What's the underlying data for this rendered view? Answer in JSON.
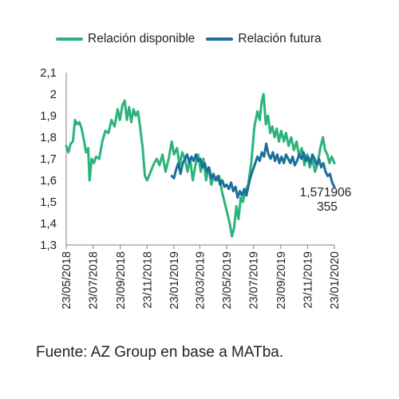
{
  "legend": {
    "series1": "Relación disponible",
    "series2": "Relación futura"
  },
  "source": "Fuente: AZ Group en base a MATba.",
  "chart_data": {
    "type": "line",
    "title": "",
    "xlabel": "",
    "ylabel": "",
    "ylim": [
      1.3,
      2.1
    ],
    "y_ticks": [
      "1,3",
      "1,4",
      "1,5",
      "1,6",
      "1,7",
      "1,8",
      "1,9",
      "2",
      "2,1"
    ],
    "y_tick_values": [
      1.3,
      1.4,
      1.5,
      1.6,
      1.7,
      1.8,
      1.9,
      2.0,
      2.1
    ],
    "x_range": [
      "2018-05-23",
      "2020-01-23"
    ],
    "x_ticks": [
      "23/05/2018",
      "23/07/2018",
      "23/09/2018",
      "23/11/2018",
      "23/01/2019",
      "23/03/2019",
      "23/05/2019",
      "23/07/2019",
      "23/09/2019",
      "23/11/2019",
      "23/01/2020"
    ],
    "x_tick_dates": [
      "2018-05-23",
      "2018-07-23",
      "2018-09-23",
      "2018-11-23",
      "2019-01-23",
      "2019-03-23",
      "2019-05-23",
      "2019-07-23",
      "2019-09-23",
      "2019-11-23",
      "2020-01-23"
    ],
    "grid": false,
    "legend_position": "top",
    "annotation": {
      "line1": "1,571906",
      "line2": "355",
      "value": 1.571906355,
      "date": "2020-01-23"
    },
    "series": [
      {
        "name": "Relación disponible",
        "color": "#2bb37a",
        "points": [
          [
            "2018-05-23",
            1.76
          ],
          [
            "2018-05-28",
            1.73
          ],
          [
            "2018-06-02",
            1.77
          ],
          [
            "2018-06-07",
            1.78
          ],
          [
            "2018-06-12",
            1.88
          ],
          [
            "2018-06-17",
            1.86
          ],
          [
            "2018-06-22",
            1.87
          ],
          [
            "2018-06-27",
            1.84
          ],
          [
            "2018-07-02",
            1.79
          ],
          [
            "2018-07-07",
            1.73
          ],
          [
            "2018-07-12",
            1.75
          ],
          [
            "2018-07-15",
            1.6
          ],
          [
            "2018-07-20",
            1.7
          ],
          [
            "2018-07-25",
            1.68
          ],
          [
            "2018-07-30",
            1.71
          ],
          [
            "2018-08-06",
            1.7
          ],
          [
            "2018-08-13",
            1.78
          ],
          [
            "2018-08-20",
            1.83
          ],
          [
            "2018-08-27",
            1.82
          ],
          [
            "2018-09-03",
            1.88
          ],
          [
            "2018-09-10",
            1.85
          ],
          [
            "2018-09-17",
            1.93
          ],
          [
            "2018-09-22",
            1.88
          ],
          [
            "2018-09-28",
            1.95
          ],
          [
            "2018-10-03",
            1.97
          ],
          [
            "2018-10-08",
            1.88
          ],
          [
            "2018-10-13",
            1.94
          ],
          [
            "2018-10-18",
            1.87
          ],
          [
            "2018-10-23",
            1.93
          ],
          [
            "2018-10-28",
            1.9
          ],
          [
            "2018-11-02",
            1.92
          ],
          [
            "2018-11-07",
            1.85
          ],
          [
            "2018-11-13",
            1.75
          ],
          [
            "2018-11-18",
            1.62
          ],
          [
            "2018-11-23",
            1.6
          ],
          [
            "2018-12-01",
            1.64
          ],
          [
            "2018-12-09",
            1.68
          ],
          [
            "2018-12-15",
            1.7
          ],
          [
            "2018-12-21",
            1.67
          ],
          [
            "2018-12-28",
            1.72
          ],
          [
            "2019-01-04",
            1.64
          ],
          [
            "2019-01-11",
            1.7
          ],
          [
            "2019-01-18",
            1.78
          ],
          [
            "2019-01-23",
            1.72
          ],
          [
            "2019-01-30",
            1.75
          ],
          [
            "2019-02-05",
            1.67
          ],
          [
            "2019-02-11",
            1.73
          ],
          [
            "2019-02-17",
            1.7
          ],
          [
            "2019-02-23",
            1.64
          ],
          [
            "2019-03-01",
            1.7
          ],
          [
            "2019-03-07",
            1.6
          ],
          [
            "2019-03-13",
            1.67
          ],
          [
            "2019-03-19",
            1.72
          ],
          [
            "2019-03-25",
            1.64
          ],
          [
            "2019-03-31",
            1.7
          ],
          [
            "2019-04-06",
            1.6
          ],
          [
            "2019-04-12",
            1.66
          ],
          [
            "2019-04-18",
            1.58
          ],
          [
            "2019-04-24",
            1.62
          ],
          [
            "2019-04-30",
            1.6
          ],
          [
            "2019-05-06",
            1.62
          ],
          [
            "2019-05-12",
            1.55
          ],
          [
            "2019-05-18",
            1.5
          ],
          [
            "2019-05-24",
            1.45
          ],
          [
            "2019-05-30",
            1.4
          ],
          [
            "2019-06-04",
            1.34
          ],
          [
            "2019-06-09",
            1.38
          ],
          [
            "2019-06-14",
            1.48
          ],
          [
            "2019-06-19",
            1.42
          ],
          [
            "2019-06-24",
            1.52
          ],
          [
            "2019-06-29",
            1.5
          ],
          [
            "2019-07-04",
            1.55
          ],
          [
            "2019-07-11",
            1.58
          ],
          [
            "2019-07-18",
            1.68
          ],
          [
            "2019-07-25",
            1.85
          ],
          [
            "2019-08-01",
            1.92
          ],
          [
            "2019-08-06",
            1.88
          ],
          [
            "2019-08-11",
            1.97
          ],
          [
            "2019-08-15",
            2.0
          ],
          [
            "2019-08-20",
            1.86
          ],
          [
            "2019-08-25",
            1.9
          ],
          [
            "2019-08-30",
            1.82
          ],
          [
            "2019-09-04",
            1.85
          ],
          [
            "2019-09-09",
            1.8
          ],
          [
            "2019-09-14",
            1.84
          ],
          [
            "2019-09-19",
            1.78
          ],
          [
            "2019-09-24",
            1.83
          ],
          [
            "2019-09-30",
            1.78
          ],
          [
            "2019-10-05",
            1.82
          ],
          [
            "2019-10-11",
            1.76
          ],
          [
            "2019-10-17",
            1.8
          ],
          [
            "2019-10-23",
            1.74
          ],
          [
            "2019-10-29",
            1.78
          ],
          [
            "2019-11-04",
            1.71
          ],
          [
            "2019-11-10",
            1.75
          ],
          [
            "2019-11-16",
            1.67
          ],
          [
            "2019-11-22",
            1.72
          ],
          [
            "2019-11-28",
            1.66
          ],
          [
            "2019-12-04",
            1.7
          ],
          [
            "2019-12-10",
            1.64
          ],
          [
            "2019-12-16",
            1.68
          ],
          [
            "2019-12-22",
            1.75
          ],
          [
            "2019-12-28",
            1.8
          ],
          [
            "2020-01-02",
            1.74
          ],
          [
            "2020-01-07",
            1.72
          ],
          [
            "2020-01-12",
            1.68
          ],
          [
            "2020-01-17",
            1.71
          ],
          [
            "2020-01-23",
            1.68
          ]
        ]
      },
      {
        "name": "Relación futura",
        "color": "#1b6f9a",
        "points": [
          [
            "2019-01-18",
            1.62
          ],
          [
            "2019-01-23",
            1.61
          ],
          [
            "2019-01-28",
            1.65
          ],
          [
            "2019-02-02",
            1.68
          ],
          [
            "2019-02-07",
            1.63
          ],
          [
            "2019-02-12",
            1.68
          ],
          [
            "2019-02-17",
            1.7
          ],
          [
            "2019-02-22",
            1.72
          ],
          [
            "2019-02-27",
            1.68
          ],
          [
            "2019-03-04",
            1.71
          ],
          [
            "2019-03-09",
            1.69
          ],
          [
            "2019-03-14",
            1.72
          ],
          [
            "2019-03-19",
            1.69
          ],
          [
            "2019-03-24",
            1.7
          ],
          [
            "2019-03-29",
            1.66
          ],
          [
            "2019-04-03",
            1.68
          ],
          [
            "2019-04-08",
            1.64
          ],
          [
            "2019-04-13",
            1.66
          ],
          [
            "2019-04-18",
            1.61
          ],
          [
            "2019-04-23",
            1.63
          ],
          [
            "2019-04-28",
            1.6
          ],
          [
            "2019-05-03",
            1.62
          ],
          [
            "2019-05-08",
            1.58
          ],
          [
            "2019-05-13",
            1.6
          ],
          [
            "2019-05-18",
            1.57
          ],
          [
            "2019-05-23",
            1.58
          ],
          [
            "2019-05-28",
            1.56
          ],
          [
            "2019-06-02",
            1.59
          ],
          [
            "2019-06-07",
            1.55
          ],
          [
            "2019-06-12",
            1.57
          ],
          [
            "2019-06-17",
            1.52
          ],
          [
            "2019-06-22",
            1.55
          ],
          [
            "2019-06-27",
            1.53
          ],
          [
            "2019-07-02",
            1.56
          ],
          [
            "2019-07-07",
            1.53
          ],
          [
            "2019-07-12",
            1.58
          ],
          [
            "2019-07-17",
            1.62
          ],
          [
            "2019-07-22",
            1.65
          ],
          [
            "2019-07-27",
            1.68
          ],
          [
            "2019-08-01",
            1.71
          ],
          [
            "2019-08-06",
            1.69
          ],
          [
            "2019-08-11",
            1.73
          ],
          [
            "2019-08-16",
            1.71
          ],
          [
            "2019-08-21",
            1.77
          ],
          [
            "2019-08-26",
            1.72
          ],
          [
            "2019-08-31",
            1.7
          ],
          [
            "2019-09-05",
            1.73
          ],
          [
            "2019-09-10",
            1.69
          ],
          [
            "2019-09-15",
            1.72
          ],
          [
            "2019-09-20",
            1.68
          ],
          [
            "2019-09-25",
            1.71
          ],
          [
            "2019-09-30",
            1.68
          ],
          [
            "2019-10-05",
            1.72
          ],
          [
            "2019-10-10",
            1.7
          ],
          [
            "2019-10-15",
            1.68
          ],
          [
            "2019-10-20",
            1.71
          ],
          [
            "2019-10-25",
            1.67
          ],
          [
            "2019-10-30",
            1.69
          ],
          [
            "2019-11-04",
            1.72
          ],
          [
            "2019-11-09",
            1.7
          ],
          [
            "2019-11-14",
            1.73
          ],
          [
            "2019-11-19",
            1.69
          ],
          [
            "2019-11-24",
            1.71
          ],
          [
            "2019-11-29",
            1.68
          ],
          [
            "2019-12-04",
            1.72
          ],
          [
            "2019-12-09",
            1.7
          ],
          [
            "2019-12-14",
            1.67
          ],
          [
            "2019-12-19",
            1.7
          ],
          [
            "2019-12-24",
            1.66
          ],
          [
            "2019-12-29",
            1.68
          ],
          [
            "2020-01-03",
            1.64
          ],
          [
            "2020-01-08",
            1.62
          ],
          [
            "2020-01-13",
            1.63
          ],
          [
            "2020-01-18",
            1.59
          ],
          [
            "2020-01-23",
            1.57
          ]
        ]
      }
    ]
  }
}
